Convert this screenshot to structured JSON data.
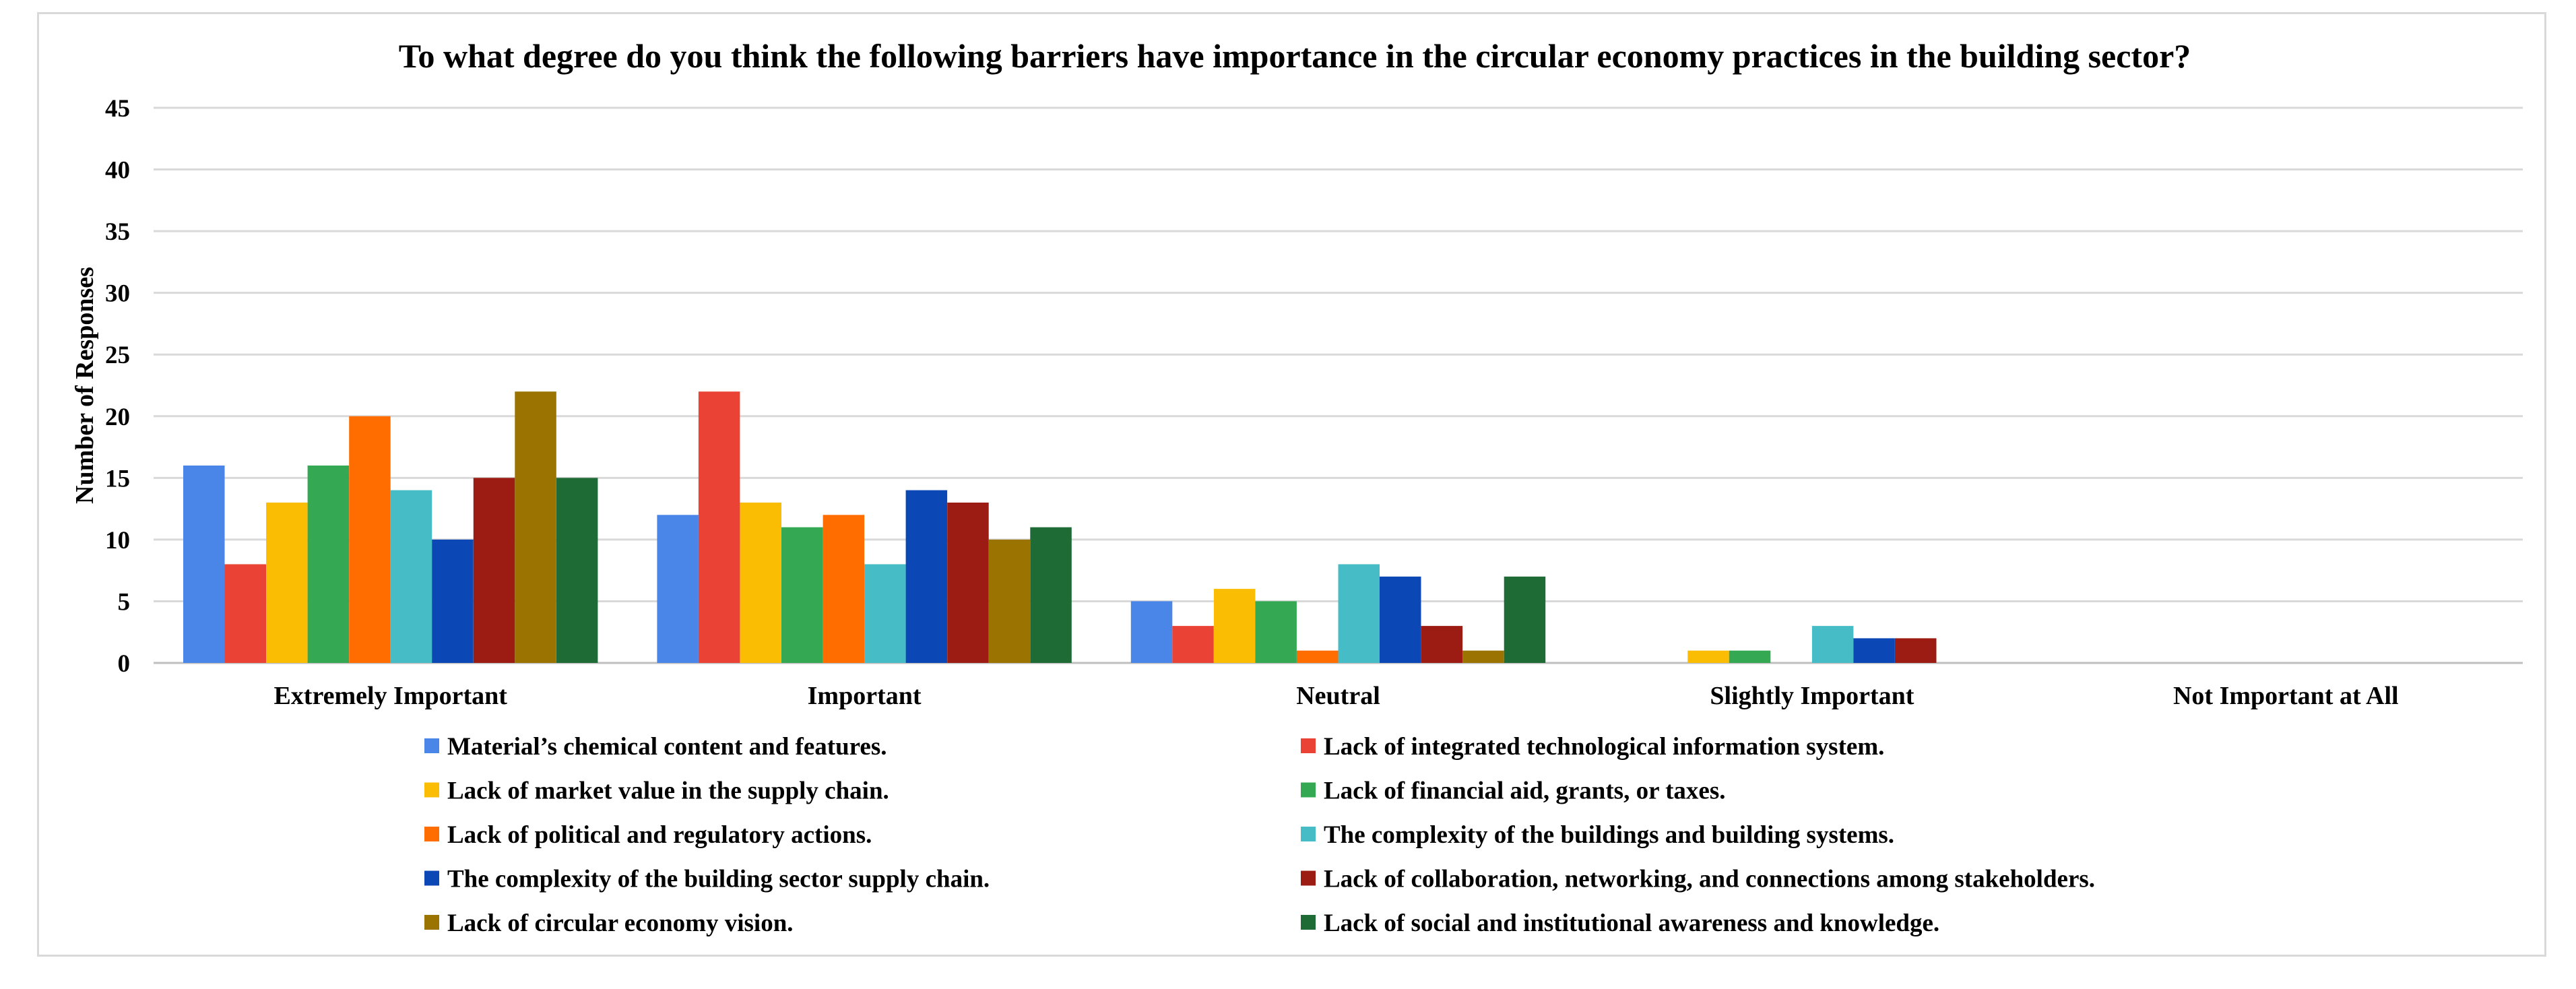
{
  "chart_data": {
    "type": "bar",
    "title": "To what degree do you think the following barriers have importance in the circular economy practices in the building sector?",
    "xlabel": "",
    "ylabel": "Number of Responses",
    "ylim": [
      0,
      45
    ],
    "yticks": [
      "0",
      "5",
      "10",
      "15",
      "20",
      "25",
      "30",
      "35",
      "40",
      "45"
    ],
    "grid": true,
    "legend_position": "bottom",
    "categories": [
      "Extremely Important",
      "Important",
      "Neutral",
      "Slightly Important",
      "Not Important at All"
    ],
    "series": [
      {
        "name": "Material’s chemical content and features.",
        "color": "#4a86e8",
        "values": [
          16,
          12,
          5,
          0,
          0
        ]
      },
      {
        "name": "Lack of integrated technological information system.",
        "color": "#ea4335",
        "values": [
          8,
          22,
          3,
          0,
          0
        ]
      },
      {
        "name": "Lack of market value in the supply chain.",
        "color": "#fbbc04",
        "values": [
          13,
          13,
          6,
          1,
          0
        ]
      },
      {
        "name": "Lack of financial aid, grants, or taxes.",
        "color": "#34a853",
        "values": [
          16,
          11,
          5,
          1,
          0
        ]
      },
      {
        "name": "Lack of political and regulatory actions.",
        "color": "#ff6d01",
        "values": [
          20,
          12,
          1,
          0,
          0
        ]
      },
      {
        "name": "The complexity of the buildings and building systems.",
        "color": "#46bdc6",
        "values": [
          14,
          8,
          8,
          3,
          0
        ]
      },
      {
        "name": "The complexity of the building sector supply chain.",
        "color": "#0b47b5",
        "values": [
          10,
          14,
          7,
          2,
          0
        ]
      },
      {
        "name": "Lack of collaboration, networking, and connections among stakeholders.",
        "color": "#9c1c13",
        "values": [
          15,
          13,
          3,
          2,
          0
        ]
      },
      {
        "name": "Lack of circular economy vision.",
        "color": "#9a7300",
        "values": [
          22,
          10,
          1,
          0,
          0
        ]
      },
      {
        "name": "Lack of social and institutional awareness and knowledge.",
        "color": "#1e6b36",
        "values": [
          15,
          11,
          7,
          0,
          0
        ]
      }
    ]
  }
}
